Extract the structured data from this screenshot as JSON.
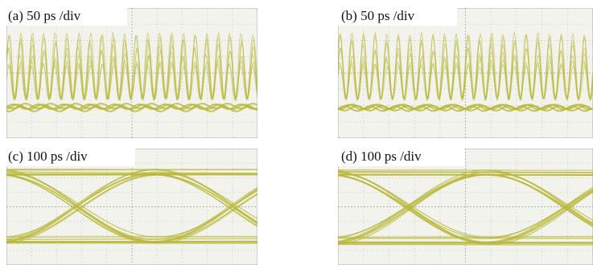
{
  "panels": [
    {
      "label": "(a) 50 ps /div",
      "kind": "pulse"
    },
    {
      "label": "(b) 50 ps /div",
      "kind": "pulse"
    },
    {
      "label": "(c) 100 ps /div",
      "kind": "eye"
    },
    {
      "label": "(d) 100 ps /div",
      "kind": "eye"
    }
  ]
}
